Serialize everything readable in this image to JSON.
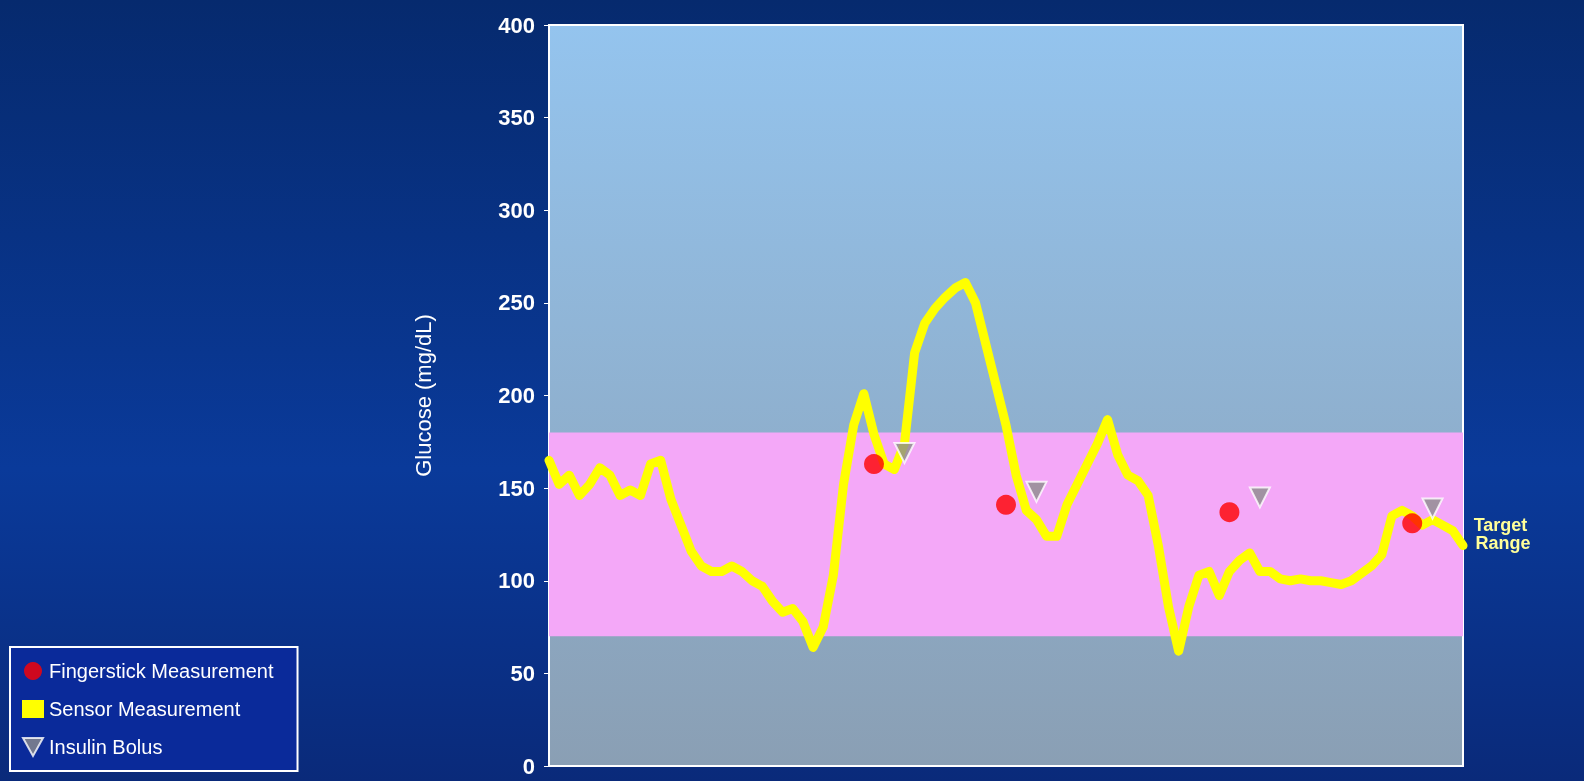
{
  "chart_data": {
    "type": "line",
    "ylabel": "Glucose (mg/dL)",
    "categories": [
      null,
      null,
      null,
      null,
      null,
      null,
      null,
      null,
      null,
      null,
      null,
      null,
      null,
      null,
      null,
      null,
      null,
      null,
      null,
      null,
      null,
      null,
      null,
      null,
      null,
      null,
      null,
      null,
      null,
      null,
      null,
      null,
      null,
      null,
      null,
      null,
      null,
      null,
      null,
      null,
      null,
      null,
      null,
      null,
      null,
      null,
      null,
      null,
      null,
      null,
      null,
      null,
      null,
      null,
      null,
      null,
      null,
      null,
      null,
      null,
      null,
      null,
      null,
      null,
      null,
      null,
      null,
      null,
      null,
      null,
      null,
      null,
      null,
      null,
      null,
      null,
      null,
      null,
      null,
      null,
      null,
      null,
      null,
      null,
      null,
      null,
      null,
      null,
      null,
      null,
      null
    ],
    "series": [
      {
        "name": "Fingerstick Measurement",
        "type": "scatter",
        "marker": "circle",
        "color": "#ff0000",
        "values": [
          null,
          null,
          null,
          null,
          null,
          null,
          null,
          null,
          null,
          null,
          null,
          null,
          null,
          null,
          null,
          null,
          null,
          null,
          null,
          null,
          null,
          null,
          null,
          null,
          null,
          null,
          null,
          null,
          null,
          null,
          null,
          null,
          163,
          null,
          null,
          null,
          null,
          null,
          null,
          null,
          null,
          null,
          null,
          null,
          null,
          141,
          null,
          null,
          null,
          null,
          null,
          null,
          null,
          null,
          null,
          null,
          null,
          null,
          null,
          null,
          null,
          null,
          null,
          null,
          null,
          null,
          null,
          137,
          null,
          null,
          null,
          null,
          null,
          null,
          null,
          null,
          null,
          null,
          null,
          null,
          null,
          null,
          null,
          null,
          null,
          131,
          null,
          null,
          null,
          null,
          null
        ]
      },
      {
        "name": "Sensor Measurement",
        "marker": "none",
        "line_style": "solid",
        "color": "#ffff00",
        "values": [
          165,
          152,
          157,
          146,
          152,
          161,
          157,
          146,
          149,
          146,
          163,
          165,
          144,
          130,
          116,
          108,
          105,
          105,
          108,
          105,
          100,
          97,
          89,
          83,
          85,
          78,
          64,
          75,
          103,
          152,
          184,
          201,
          179,
          163,
          160,
          174,
          223,
          239,
          247,
          253,
          258,
          261,
          250,
          228,
          206,
          184,
          157,
          138,
          133,
          124,
          124,
          141,
          152,
          163,
          174,
          187,
          168,
          157,
          154,
          146,
          119,
          86,
          62,
          86,
          103,
          105,
          92,
          105,
          111,
          115,
          105,
          105,
          101,
          100,
          101,
          100,
          100,
          99,
          98,
          100,
          104,
          108,
          114,
          135,
          138,
          135,
          130,
          133,
          130,
          127,
          119
        ]
      },
      {
        "name": "Insulin Bolus",
        "type": "scatter",
        "marker": "triangle",
        "color": "#8c8c8c",
        "values": [
          null,
          null,
          null,
          null,
          null,
          null,
          null,
          null,
          null,
          null,
          null,
          null,
          null,
          null,
          null,
          null,
          null,
          null,
          null,
          null,
          null,
          null,
          null,
          null,
          null,
          null,
          null,
          null,
          null,
          null,
          null,
          null,
          null,
          null,
          null,
          169,
          null,
          null,
          null,
          null,
          null,
          null,
          null,
          null,
          null,
          null,
          null,
          null,
          148,
          null,
          null,
          null,
          null,
          null,
          null,
          null,
          null,
          null,
          null,
          null,
          null,
          null,
          null,
          null,
          null,
          null,
          null,
          null,
          null,
          null,
          145,
          null,
          null,
          null,
          null,
          null,
          null,
          null,
          null,
          null,
          null,
          null,
          null,
          null,
          null,
          null,
          null,
          139,
          null,
          null,
          null
        ]
      }
    ],
    "ylim": [
      0,
      400
    ],
    "yticks": [
      0,
      50,
      100,
      150,
      200,
      250,
      300,
      350,
      400
    ],
    "bands": [
      {
        "axis": "y",
        "from": 70,
        "to": 180,
        "label": "Target Range",
        "color": "#f4a8f8"
      }
    ],
    "grid": false,
    "legend": "bottom left"
  }
}
